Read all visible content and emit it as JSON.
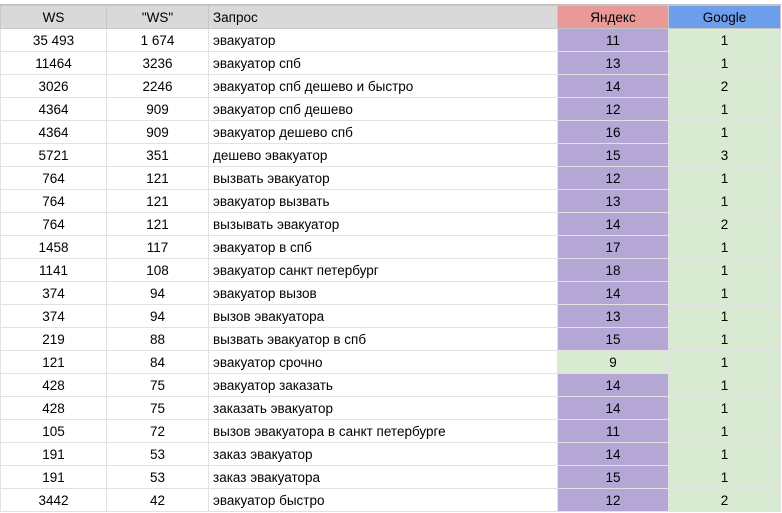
{
  "colors": {
    "header": "#d9d9d9",
    "yandex_header": "#ea9999",
    "google_header": "#6d9eeb",
    "worse": "#b4a7d6",
    "better": "#d9ead3"
  },
  "headers": [
    "WS",
    "\"WS\"",
    "Запрос",
    "Яндекс",
    "Google"
  ],
  "rows": [
    [
      "35 493",
      "1 674",
      "эвакуатор",
      "11",
      "1"
    ],
    [
      "11464",
      "3236",
      "эвакуатор спб",
      "13",
      "1"
    ],
    [
      "3026",
      "2246",
      "эвакуатор спб дешево и быстро",
      "14",
      "2"
    ],
    [
      "4364",
      "909",
      "эвакуатор спб дешево",
      "12",
      "1"
    ],
    [
      "4364",
      "909",
      "эвакуатор дешево спб",
      "16",
      "1"
    ],
    [
      "5721",
      "351",
      "дешево эвакуатор",
      "15",
      "3"
    ],
    [
      "764",
      "121",
      "вызвать эвакуатор",
      "12",
      "1"
    ],
    [
      "764",
      "121",
      "эвакуатор вызвать",
      "13",
      "1"
    ],
    [
      "764",
      "121",
      "вызывать эвакуатор",
      "14",
      "2"
    ],
    [
      "1458",
      "117",
      "эвакуатор в спб",
      "17",
      "1"
    ],
    [
      "1141",
      "108",
      "эвакуатор санкт петербург",
      "18",
      "1"
    ],
    [
      "374",
      "94",
      "эвакуатор вызов",
      "14",
      "1"
    ],
    [
      "374",
      "94",
      "вызов эвакуатора",
      "13",
      "1"
    ],
    [
      "219",
      "88",
      "вызвать эвакуатор в спб",
      "15",
      "1"
    ],
    [
      "121",
      "84",
      "эвакуатор срочно",
      "9",
      "1"
    ],
    [
      "428",
      "75",
      "эвакуатор заказать",
      "14",
      "1"
    ],
    [
      "428",
      "75",
      "заказать эвакуатор",
      "14",
      "1"
    ],
    [
      "105",
      "72",
      "вызов эвакуатора в санкт петербурге",
      "11",
      "1"
    ],
    [
      "191",
      "53",
      "заказ эвакуатор",
      "14",
      "1"
    ],
    [
      "191",
      "53",
      "заказ эвакуатора",
      "15",
      "1"
    ],
    [
      "3442",
      "42",
      "эвакуатор быстро",
      "12",
      "2"
    ]
  ]
}
